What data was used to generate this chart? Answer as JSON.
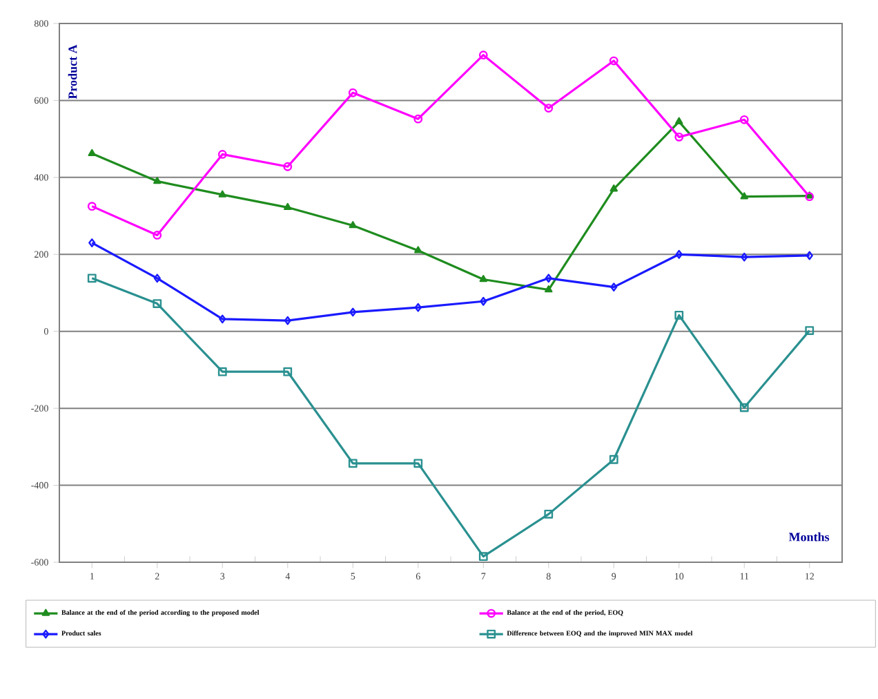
{
  "chart_data": {
    "type": "line",
    "xlabel": "Months",
    "ylabel": "Product A",
    "categories": [
      "1",
      "2",
      "3",
      "4",
      "5",
      "6",
      "7",
      "8",
      "9",
      "10",
      "11",
      "12"
    ],
    "series": [
      {
        "name": "Balance at the end of the period according to the proposed model",
        "color": "#1e8c1e",
        "marker": "triangle",
        "values": [
          462,
          390,
          355,
          322,
          275,
          210,
          135,
          108,
          370,
          545,
          350,
          352
        ]
      },
      {
        "name": "Balance at the end of the period, EOQ",
        "color": "#ff00ff",
        "marker": "circle",
        "values": [
          325,
          250,
          460,
          428,
          620,
          552,
          718,
          580,
          703,
          505,
          550,
          350
        ]
      },
      {
        "name": "Product sales",
        "color": "#1a1aff",
        "marker": "diamond",
        "values": [
          230,
          138,
          32,
          28,
          50,
          62,
          78,
          138,
          115,
          200,
          193,
          197
        ]
      },
      {
        "name": "Difference between EOQ and the improved MIN MAX model",
        "color": "#2a9090",
        "marker": "square",
        "values": [
          138,
          72,
          -105,
          -105,
          -343,
          -343,
          -585,
          -475,
          -333,
          42,
          -198,
          2
        ]
      }
    ],
    "ylim": [
      -600,
      800
    ],
    "yticks": [
      -600,
      -400,
      -200,
      0,
      200,
      400,
      600,
      800
    ],
    "grid": "y",
    "legend": "bottom",
    "line_style": "solid"
  }
}
